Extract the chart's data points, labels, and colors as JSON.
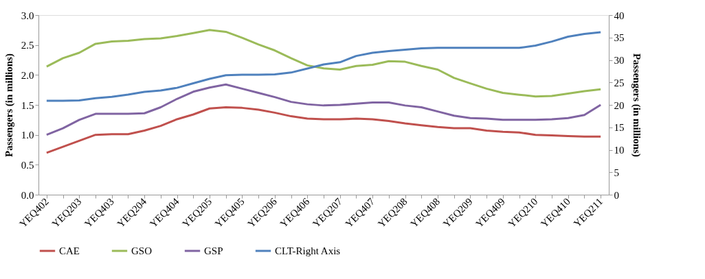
{
  "chart_data": {
    "type": "line",
    "categories": [
      "YEQ402",
      null,
      "YEQ203",
      null,
      "YEQ403",
      null,
      "YEQ204",
      null,
      "YEQ404",
      null,
      "YEQ205",
      null,
      "YEQ405",
      null,
      "YEQ206",
      null,
      "YEQ406",
      null,
      "YEQ207",
      null,
      "YEQ407",
      null,
      "YEQ208",
      null,
      "YEQ408",
      null,
      "YEQ209",
      null,
      "YEQ409",
      null,
      "YEQ210",
      null,
      "YEQ410",
      null,
      "YEQ211"
    ],
    "ylabel": "Passengers (in millions)",
    "y2label": "Passengers (in millions)",
    "ylim": [
      0,
      3
    ],
    "yticks": [
      {
        "value": 0,
        "label": "0.0"
      },
      0.5,
      {
        "value": 1,
        "label": "1.0"
      },
      1.5,
      {
        "value": 2,
        "label": "2.0"
      },
      2.5,
      {
        "value": 3,
        "label": "3.0"
      }
    ],
    "y2lim": [
      0,
      40
    ],
    "y2ticks": [
      0,
      5,
      10,
      15,
      20,
      25,
      30,
      35,
      40
    ],
    "grid": false,
    "legend": "bottom",
    "line_style": "solid",
    "series": [
      {
        "name": "CAE",
        "color": "#c0504d",
        "values": [
          0.7,
          0.8,
          0.9,
          1.0,
          1.01,
          1.01,
          1.07,
          1.15,
          1.26,
          1.34,
          1.44,
          1.46,
          1.45,
          1.42,
          1.37,
          1.31,
          1.27,
          1.26,
          1.26,
          1.27,
          1.26,
          1.23,
          1.19,
          1.16,
          1.13,
          1.11,
          1.11,
          1.07,
          1.05,
          1.04,
          1.0,
          0.99,
          0.98,
          0.97,
          0.97
        ]
      },
      {
        "name": "GSO",
        "color": "#9bbb59",
        "values": [
          2.14,
          2.28,
          2.37,
          2.52,
          2.56,
          2.57,
          2.6,
          2.61,
          2.65,
          2.7,
          2.75,
          2.72,
          2.62,
          2.51,
          2.41,
          2.28,
          2.16,
          2.11,
          2.09,
          2.15,
          2.17,
          2.23,
          2.22,
          2.15,
          2.09,
          1.95,
          1.86,
          1.77,
          1.7,
          1.67,
          1.64,
          1.65,
          1.69,
          1.73,
          1.76
        ]
      },
      {
        "name": "GSP",
        "color": "#8064a2",
        "values": [
          1.0,
          1.11,
          1.25,
          1.35,
          1.35,
          1.35,
          1.36,
          1.46,
          1.6,
          1.72,
          1.79,
          1.84,
          1.77,
          1.7,
          1.63,
          1.55,
          1.51,
          1.49,
          1.5,
          1.52,
          1.54,
          1.54,
          1.49,
          1.46,
          1.39,
          1.32,
          1.28,
          1.27,
          1.25,
          1.25,
          1.25,
          1.26,
          1.28,
          1.33,
          1.5
        ]
      },
      {
        "name": "CLT-Right Axis",
        "color": "#4f81bd",
        "axis": "y2",
        "values": [
          20.9,
          20.9,
          21.0,
          21.5,
          21.8,
          22.3,
          22.9,
          23.2,
          23.8,
          24.8,
          25.8,
          26.6,
          26.7,
          26.7,
          26.8,
          27.2,
          28.1,
          29.0,
          29.5,
          30.9,
          31.6,
          32.0,
          32.3,
          32.6,
          32.7,
          32.7,
          32.7,
          32.7,
          32.7,
          32.7,
          33.2,
          34.1,
          35.2,
          35.8,
          36.2
        ]
      }
    ]
  }
}
